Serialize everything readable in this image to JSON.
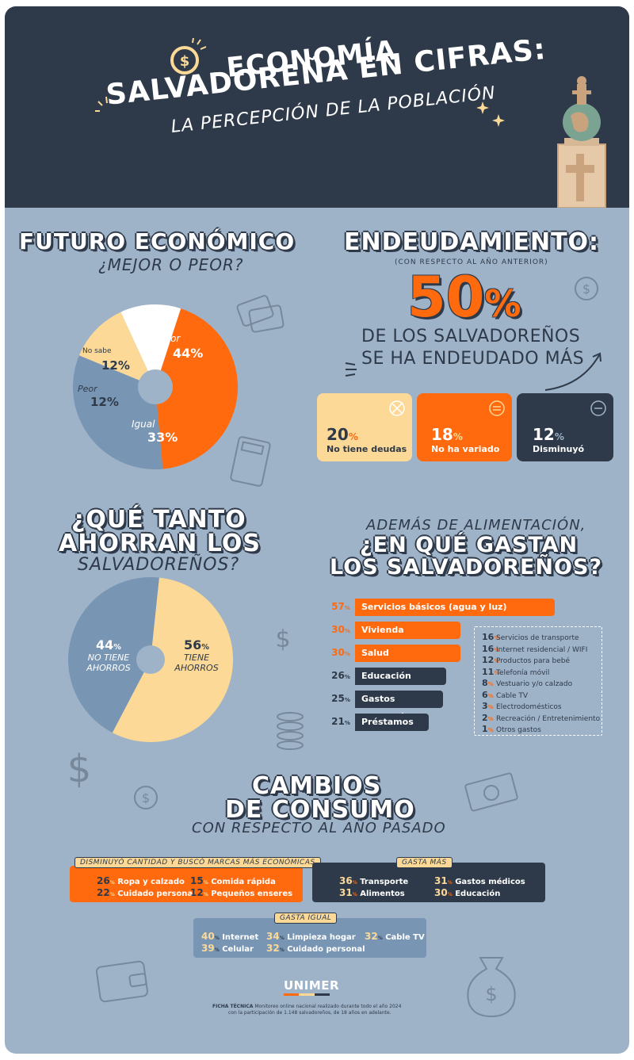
{
  "colors": {
    "orange": "#ff6a0f",
    "peach": "#fcd997",
    "blue": "#7896b4",
    "dark": "#2e3a4a",
    "bg": "#9fb3c8",
    "white": "#ffffff"
  },
  "header": {
    "line1": "ECONOMÍA",
    "line2": "SALVADOREÑA EN CIFRAS:",
    "subtitle": "LA PERCEPCIÓN DE LA POBLACIÓN"
  },
  "futuro": {
    "title": "FUTURO ECONÓMICO",
    "subtitle": "¿MEJOR O PEOR?",
    "slices": [
      {
        "label": "Mejor",
        "value": 44,
        "pct": "44%",
        "color": "#ff6a0f"
      },
      {
        "label": "Igual",
        "value": 33,
        "pct": "33%",
        "color": "#7896b4"
      },
      {
        "label": "Peor",
        "value": 12,
        "pct": "12%",
        "color": "#fcd997"
      },
      {
        "label": "No sabe",
        "value": 12,
        "pct": "12%",
        "color": "#ffffff"
      }
    ]
  },
  "endeudamiento": {
    "title": "ENDEUDAMIENTO:",
    "note": "(CON RESPECTO AL AÑO ANTERIOR)",
    "big_num": "50",
    "big_pct": "%",
    "line1": "DE LOS SALVADOREÑOS",
    "line2": "SE HA ENDEUDADO MÁS",
    "cards": [
      {
        "num": "20",
        "pct": "%",
        "label": "No tiene deudas"
      },
      {
        "num": "18",
        "pct": "%",
        "label": "No ha variado"
      },
      {
        "num": "12",
        "pct": "%",
        "label": "Disminuyó"
      }
    ]
  },
  "ahorro": {
    "title1": "¿QUÉ TANTO",
    "title2": "AHORRAN LOS",
    "subtitle": "SALVADOREÑOS?",
    "no": {
      "num": "44",
      "pct": "%",
      "label1": "NO TIENE",
      "label2": "AHORROS",
      "value": 44
    },
    "si": {
      "num": "56",
      "pct": "%",
      "label1": "TIENE",
      "label2": "AHORROS",
      "value": 56
    }
  },
  "gastos": {
    "pre": "ADEMÁS DE ALIMENTACIÓN,",
    "title1": "¿EN QUÉ GASTAN",
    "title2": "LOS SALVADOREÑOS?",
    "bars": [
      {
        "num": "57",
        "pct": "%",
        "label": "Servicios básicos (agua y luz)",
        "value": 57
      },
      {
        "num": "30",
        "pct": "%",
        "label": "Vivienda",
        "value": 30
      },
      {
        "num": "30",
        "pct": "%",
        "label": "Salud",
        "value": 30
      },
      {
        "num": "26",
        "pct": "%",
        "label": "Educación",
        "value": 26
      },
      {
        "num": "25",
        "pct": "%",
        "label": "Gastos personales",
        "value": 25
      },
      {
        "num": "21",
        "pct": "%",
        "label": "Préstamos",
        "value": 21
      }
    ],
    "others": [
      {
        "num": "16",
        "pct": "%",
        "label": "Servicios de transporte"
      },
      {
        "num": "16",
        "pct": "%",
        "label": "Internet residencial / WIFI"
      },
      {
        "num": "12",
        "pct": "%",
        "label": "Productos para bebé"
      },
      {
        "num": "11",
        "pct": "%",
        "label": "Telefonía móvil"
      },
      {
        "num": "8",
        "pct": "%",
        "label": "Vestuario y/o calzado"
      },
      {
        "num": "6",
        "pct": "%",
        "label": "Cable TV"
      },
      {
        "num": "3",
        "pct": "%",
        "label": "Electrodomésticos"
      },
      {
        "num": "2",
        "pct": "%",
        "label": "Recreación / Entretenimiento"
      },
      {
        "num": "1",
        "pct": "%",
        "label": "Otros gastos"
      }
    ]
  },
  "cambios": {
    "title1": "CAMBIOS",
    "title2": "DE CONSUMO",
    "subtitle": "CON RESPECTO AL AÑO PASADO",
    "disminuyo": {
      "tag": "DISMINUYÓ CANTIDAD Y BUSCÓ MARCAS MÁS ECONÓMICAS",
      "items": [
        {
          "num": "26",
          "pct": "%",
          "label": "Ropa y calzado"
        },
        {
          "num": "15",
          "pct": "%",
          "label": "Comida rápida"
        },
        {
          "num": "22",
          "pct": "%",
          "label": "Cuidado personal"
        },
        {
          "num": "12",
          "pct": "%",
          "label": "Pequeños enseres"
        }
      ]
    },
    "gasta_mas": {
      "tag": "GASTA MÁS",
      "items": [
        {
          "num": "36",
          "pct": "%",
          "label": "Transporte"
        },
        {
          "num": "31",
          "pct": "%",
          "label": "Gastos médicos"
        },
        {
          "num": "31",
          "pct": "%",
          "label": "Alimentos"
        },
        {
          "num": "30",
          "pct": "%",
          "label": "Educación"
        }
      ]
    },
    "gasta_igual": {
      "tag": "GASTA IGUAL",
      "items": [
        {
          "num": "40",
          "pct": "%",
          "label": "Internet"
        },
        {
          "num": "34",
          "pct": "%",
          "label": "Limpieza hogar"
        },
        {
          "num": "32",
          "pct": "%",
          "label": "Cable TV"
        },
        {
          "num": "39",
          "pct": "%",
          "label": "Celular"
        },
        {
          "num": "32",
          "pct": "%",
          "label": "Cuidado personal"
        }
      ]
    }
  },
  "footer": {
    "logo": "UNIMER",
    "ficha_label": "FICHA TÉCNICA",
    "ficha_text1": "Monitoreo online nacional realizado durante todo el año 2024",
    "ficha_text2": "con la participación de 1.148 salvadoreños, de 18 años en adelante."
  }
}
